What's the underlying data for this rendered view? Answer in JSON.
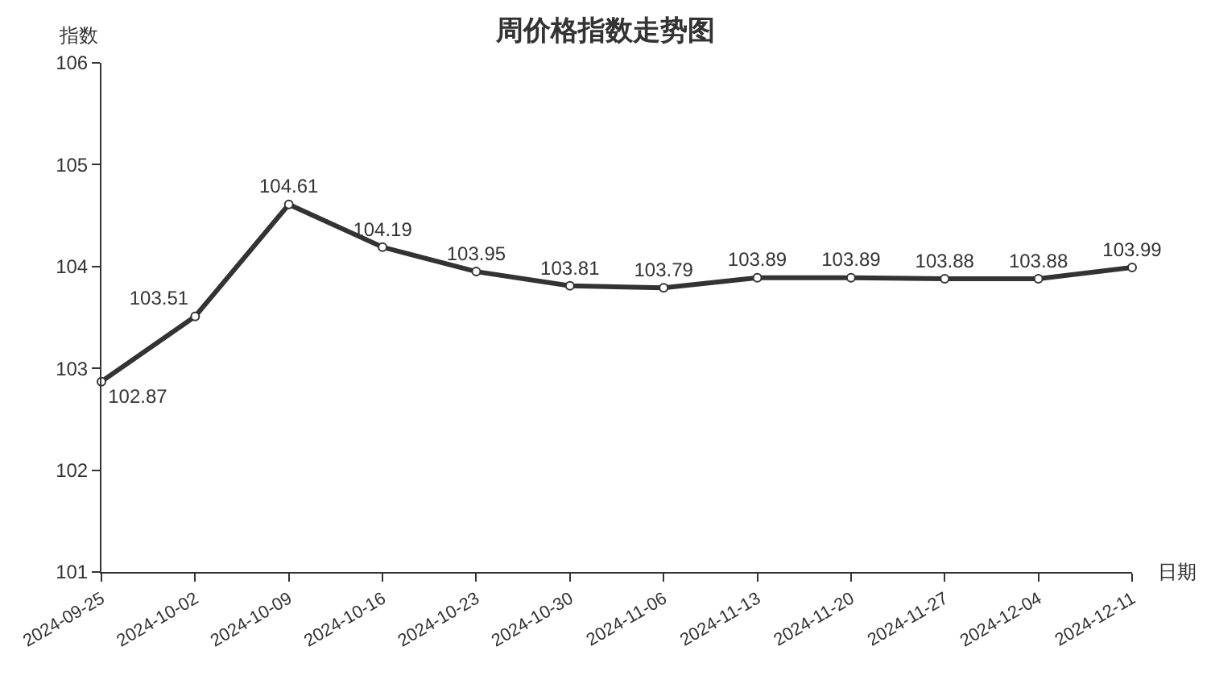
{
  "chart_data": {
    "type": "line",
    "title": "周价格指数走势图",
    "xlabel": "日期",
    "ylabel": "指数",
    "categories": [
      "2024-09-25",
      "2024-10-02",
      "2024-10-09",
      "2024-10-16",
      "2024-10-23",
      "2024-10-30",
      "2024-11-06",
      "2024-11-13",
      "2024-11-20",
      "2024-11-27",
      "2024-12-04",
      "2024-12-11"
    ],
    "series": [
      {
        "color": "#333333",
        "values": [
          102.87,
          103.51,
          104.61,
          104.19,
          103.95,
          103.81,
          103.79,
          103.89,
          103.89,
          103.88,
          103.88,
          103.99
        ]
      }
    ],
    "ylim": [
      101,
      106
    ],
    "yticks": [
      101,
      102,
      103,
      104,
      105,
      106
    ],
    "grid": false,
    "legend": false,
    "marker": "circle",
    "line_style": "solid",
    "data_labels": true
  }
}
